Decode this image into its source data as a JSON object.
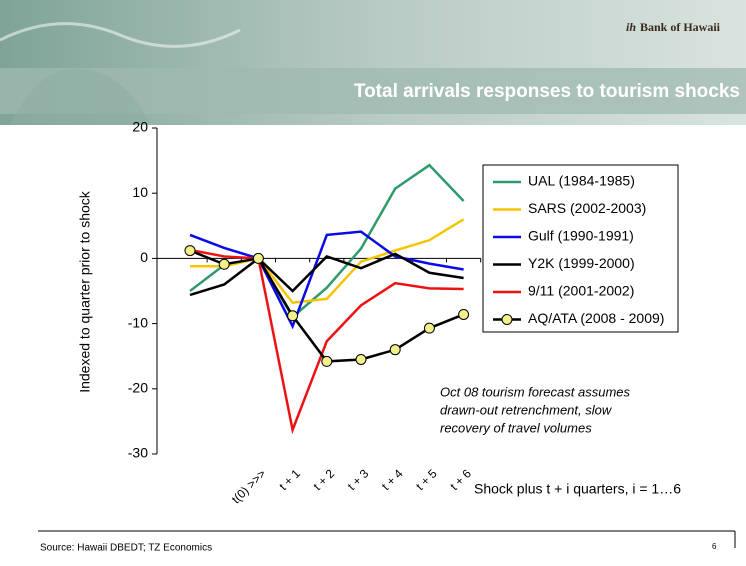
{
  "logo": "Bank of Hawaii",
  "source": "Source:  Hawaii DBEDT; TZ Economics",
  "page_number": "6",
  "chart_data": {
    "type": "line",
    "title": "Total arrivals responses to tourism shocks",
    "ylabel": "Indexed to quarter prior to shock",
    "xlabel": "Shock plus t + i quarters, i = 1…6",
    "annotation": [
      "Oct 08 tourism forecast assumes",
      "drawn-out retrenchment, slow",
      "recovery of travel volumes"
    ],
    "categories": [
      null,
      null,
      "t(0) >>>",
      "t + 1",
      "t + 2",
      "t + 3",
      "t + 4",
      "t + 5",
      "t + 6"
    ],
    "ylim": [
      -30,
      20
    ],
    "yticks": [
      -30,
      -20,
      -10,
      0,
      10,
      20
    ],
    "grid": false,
    "legend": "right",
    "series": [
      {
        "name": "UAL (1984-1985)",
        "color": "#2f9a6a",
        "values": [
          -5,
          -1,
          0,
          -9,
          -4.5,
          1.5,
          10.7,
          14.3,
          8.8
        ]
      },
      {
        "name": "SARS (2002-2003)",
        "color": "#f5c400",
        "values": [
          -1.2,
          -1.2,
          0,
          -6.8,
          -6.2,
          -0.5,
          1.2,
          2.8,
          6
        ]
      },
      {
        "name": "Gulf (1990-1991)",
        "color": "#0a0ae8",
        "values": [
          3.6,
          1.6,
          0,
          -10.4,
          3.6,
          4.1,
          0.3,
          -0.8,
          -1.7
        ]
      },
      {
        "name": "Y2K (1999-2000)",
        "color": "#000000",
        "values": [
          -5.6,
          -4,
          0,
          -5,
          0.3,
          -1.5,
          0.7,
          -2.2,
          -3
        ]
      },
      {
        "name": "9/11 (2001-2002)",
        "color": "#ee1111",
        "values": [
          1.3,
          0.3,
          0,
          -26.3,
          -12.7,
          -7.2,
          -3.8,
          -4.6,
          -4.7
        ]
      },
      {
        "name": "AQ/ATA (2008 - 2009)",
        "color": "#000000",
        "marker_color": "#f2f08a",
        "values": [
          1.2,
          -0.9,
          0,
          -8.8,
          -15.8,
          -15.5,
          -14,
          -10.7,
          -8.6
        ]
      }
    ]
  }
}
